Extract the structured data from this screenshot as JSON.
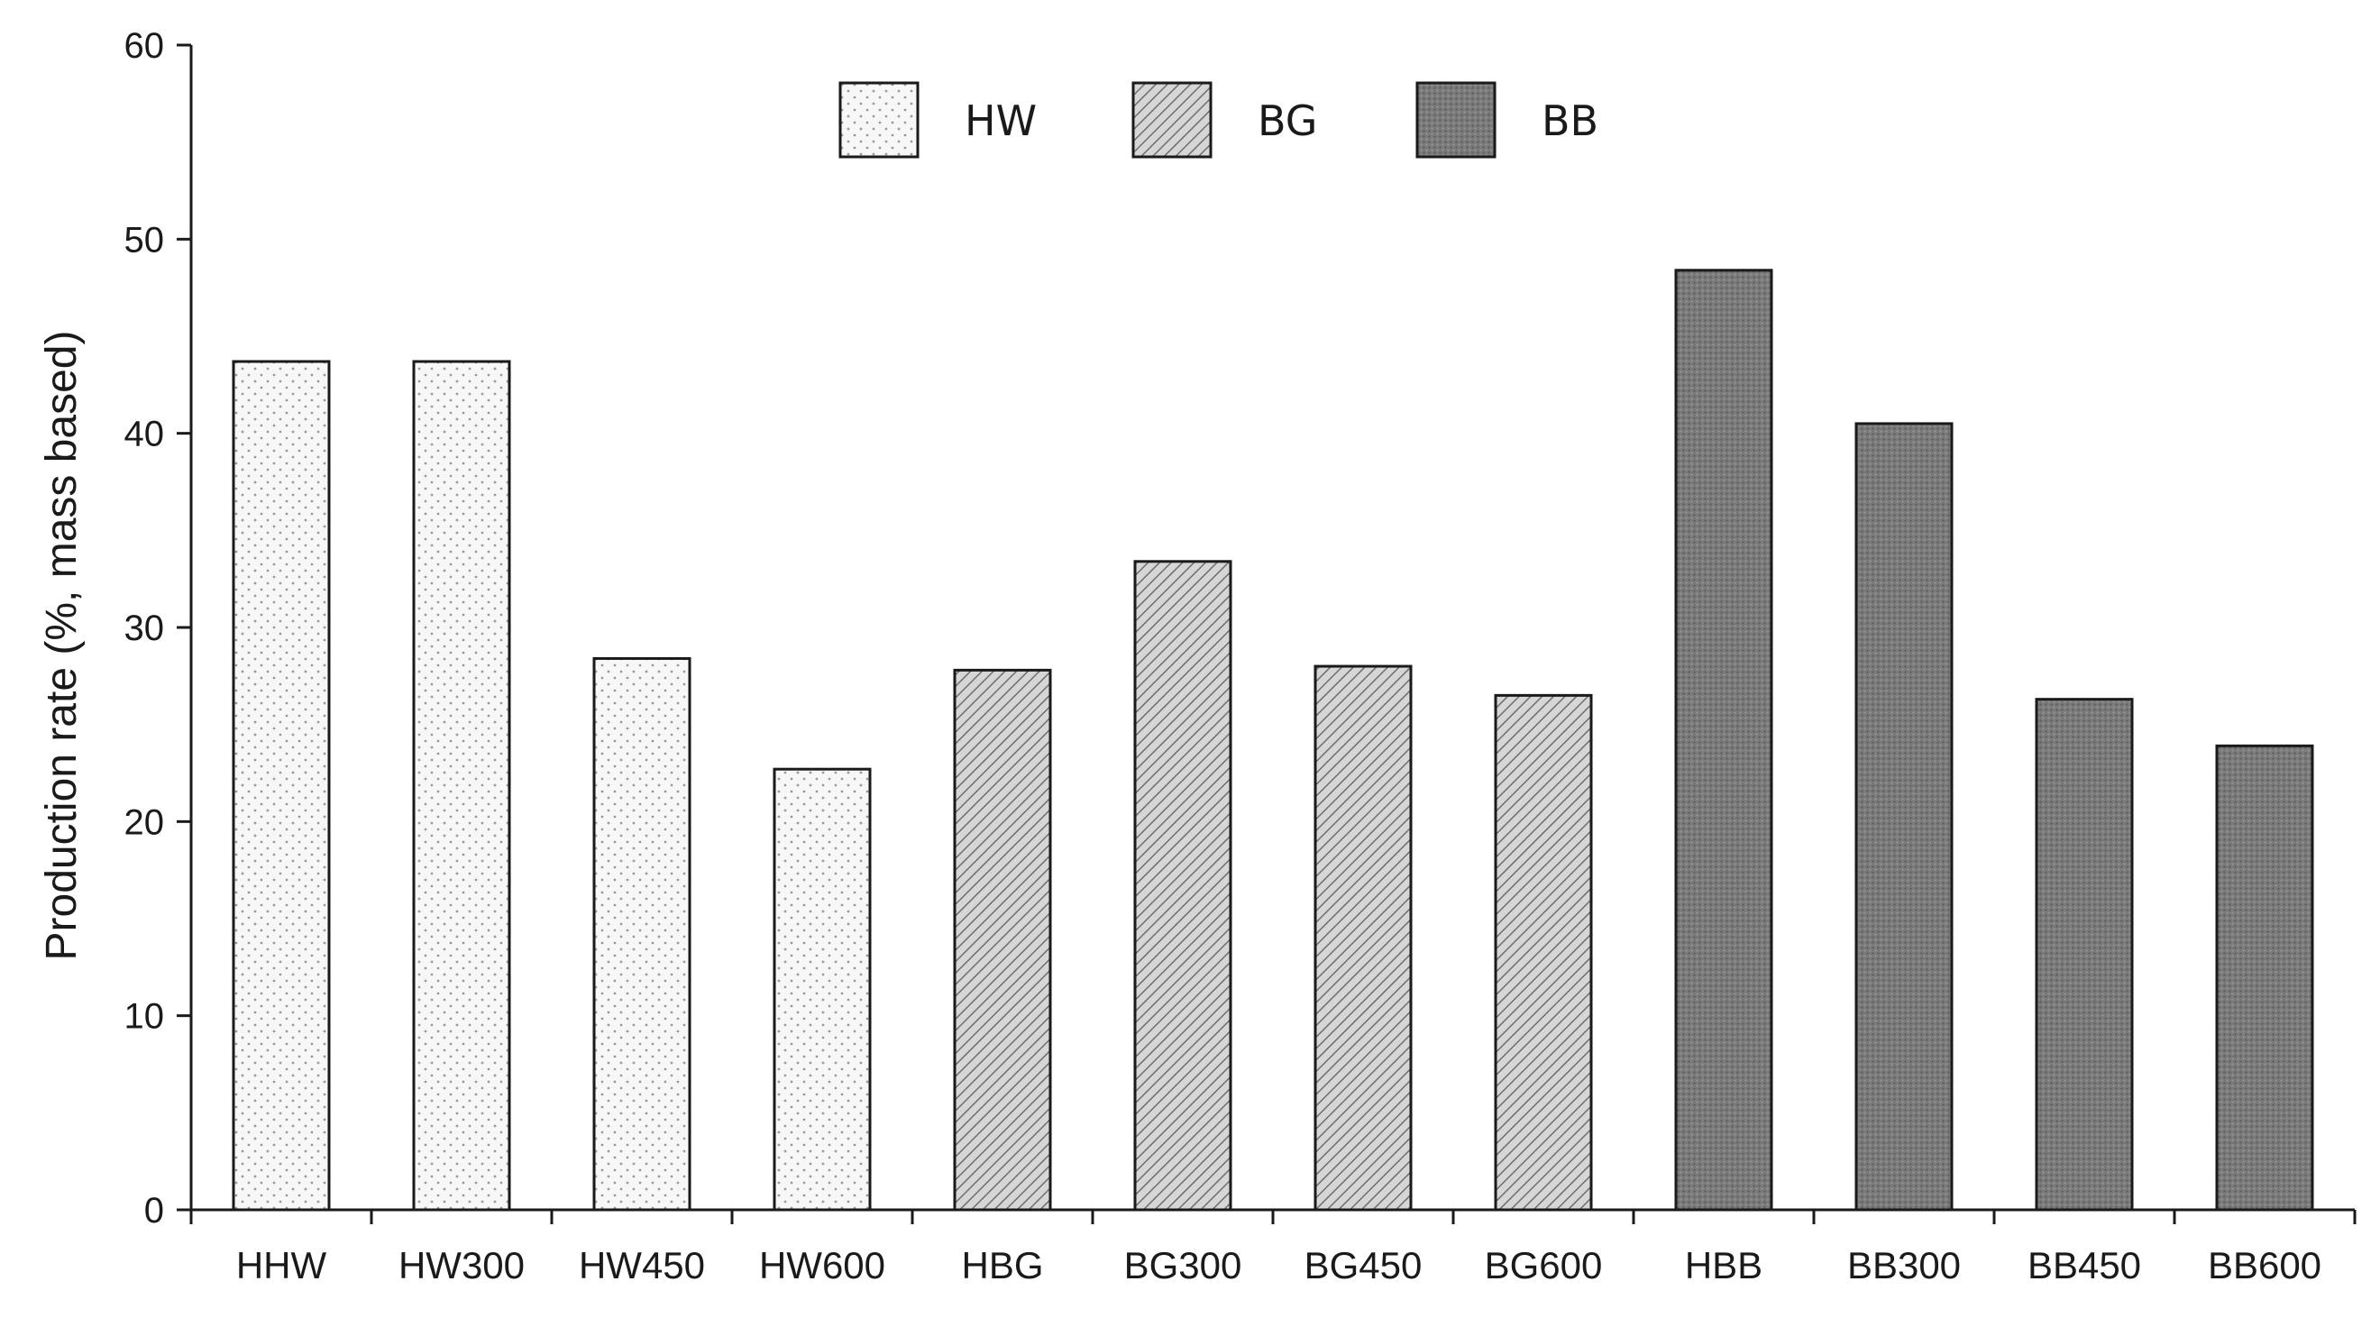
{
  "chart_data": {
    "type": "bar",
    "title": "",
    "xlabel": "",
    "ylabel": "Production rate (%, mass based)",
    "ylim": [
      0,
      60
    ],
    "yticks": [
      "0",
      "10",
      "20",
      "30",
      "40",
      "50",
      "60"
    ],
    "grid": false,
    "legend_position": "top-center",
    "categories": [
      "HHW",
      "HW300",
      "HW450",
      "HW600",
      "HBG",
      "BG300",
      "BG450",
      "BG600",
      "HBB",
      "BB300",
      "BB450",
      "BB600"
    ],
    "values": [
      43.7,
      43.7,
      28.4,
      22.7,
      27.8,
      33.4,
      28.0,
      26.5,
      48.4,
      40.5,
      26.3,
      23.9
    ],
    "groups": [
      0,
      0,
      0,
      0,
      1,
      1,
      1,
      1,
      2,
      2,
      2,
      2
    ],
    "series": [
      {
        "name": "HW",
        "pattern": "dots",
        "color": "#f2f2f2"
      },
      {
        "name": "BG",
        "pattern": "diagonal-hatch",
        "color": "#bdbdbd"
      },
      {
        "name": "BB",
        "pattern": "dense-dots",
        "color": "#6b6b6b"
      }
    ]
  }
}
